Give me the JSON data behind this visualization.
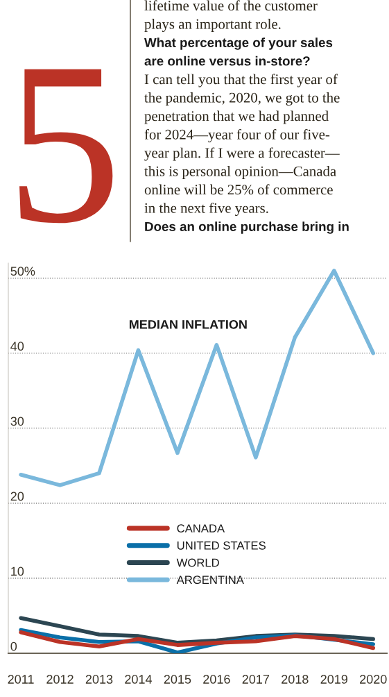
{
  "chart_data": {
    "type": "line",
    "title": "MEDIAN INFLATION",
    "x": [
      2011,
      2012,
      2013,
      2014,
      2015,
      2016,
      2017,
      2018,
      2019,
      2020
    ],
    "series": [
      {
        "name": "CANADA",
        "color": "#bb3326",
        "values": [
          2.8,
          1.5,
          0.9,
          1.9,
          1.1,
          1.4,
          1.6,
          2.3,
          1.9,
          0.7
        ]
      },
      {
        "name": "UNITED STATES",
        "color": "#0a6fa8",
        "values": [
          3.1,
          2.1,
          1.5,
          1.6,
          0.1,
          1.3,
          2.1,
          2.4,
          1.8,
          1.2
        ]
      },
      {
        "name": "WORLD",
        "color": "#2c4652",
        "values": [
          4.7,
          3.6,
          2.5,
          2.3,
          1.4,
          1.7,
          2.3,
          2.5,
          2.3,
          1.9
        ]
      },
      {
        "name": "ARGENTINA",
        "color": "#7ab8dc",
        "values": [
          23.8,
          22.4,
          24.0,
          40.4,
          26.7,
          41.1,
          26.1,
          42.1,
          51.0,
          40.0
        ]
      }
    ],
    "xlim": [
      2010.68,
      2020.35
    ],
    "xticks": [
      2011,
      2012,
      2013,
      2014,
      2015,
      2016,
      2017,
      2018,
      2019,
      2020
    ],
    "ylim": [
      0,
      52
    ],
    "yticks": [
      0,
      10,
      20,
      30,
      40,
      {
        "value": 50,
        "label": "50%"
      }
    ],
    "grid": "y",
    "legend": "bottom",
    "marker": "none",
    "line_style": "solid",
    "annotations": [
      "5",
      "lifetime value of the customer",
      "plays an important role.",
      "What percentage of your sales",
      "are online versus in-store?",
      "I can tell you that the first year of",
      "the pandemic, 2020, we got to the",
      "penetration that we had planned",
      "for 2024—year four of our five-",
      "year plan. If I were a forecaster—",
      "this is personal opinion—Canada",
      "online will be 25% of commerce",
      "in the next five years.",
      "Does an online purchase bring in"
    ]
  }
}
